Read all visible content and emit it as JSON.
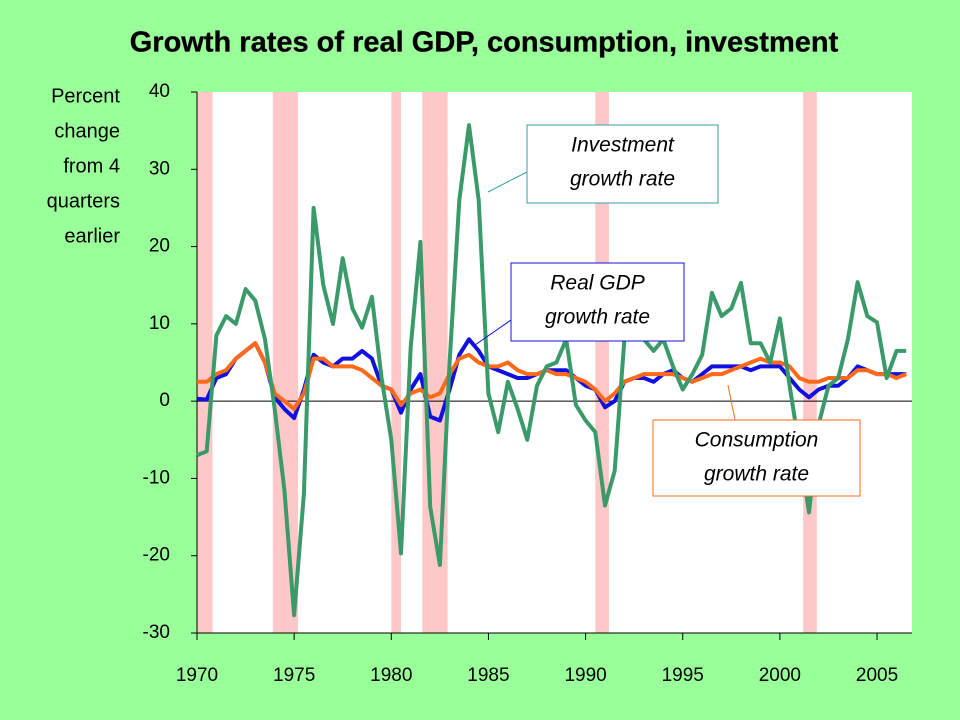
{
  "chart_data": {
    "type": "line",
    "title": "Growth rates of real GDP, consumption, investment",
    "y_label": [
      "Percent",
      "change",
      "from 4",
      "quarters",
      "earlier"
    ],
    "x": [
      1970,
      1970.5,
      1971,
      1971.5,
      1972,
      1972.5,
      1973,
      1973.5,
      1974,
      1974.5,
      1975,
      1975.5,
      1976,
      1976.5,
      1977,
      1977.5,
      1978,
      1978.5,
      1979,
      1979.5,
      1980,
      1980.5,
      1981,
      1981.5,
      1982,
      1982.5,
      1983,
      1983.5,
      1984,
      1984.5,
      1985,
      1985.5,
      1986,
      1986.5,
      1987,
      1987.5,
      1988,
      1988.5,
      1989,
      1989.5,
      1990,
      1990.5,
      1991,
      1991.5,
      1992,
      1992.5,
      1993,
      1993.5,
      1994,
      1994.5,
      1995,
      1995.5,
      1996,
      1996.5,
      1997,
      1997.5,
      1998,
      1998.5,
      1999,
      1999.5,
      2000,
      2000.5,
      2001,
      2001.5,
      2002,
      2002.5,
      2003,
      2003.5,
      2004,
      2004.5,
      2005,
      2005.5,
      2006,
      2006.5
    ],
    "series": [
      {
        "name": "Real GDP growth rate",
        "color": "#1010e0",
        "values": [
          0.3,
          0.2,
          3,
          3.5,
          5.5,
          6.5,
          7.5,
          5,
          0.5,
          -1,
          -2.2,
          1.5,
          6,
          5,
          4.5,
          5.5,
          5.5,
          6.5,
          5.5,
          2,
          1.5,
          -1.5,
          1.5,
          3.5,
          -2,
          -2.5,
          1.5,
          6,
          8,
          6.5,
          4.5,
          4,
          3.5,
          3,
          3,
          3.5,
          4,
          4,
          4,
          3,
          2,
          1.5,
          -0.8,
          0,
          2.5,
          3,
          3,
          2.5,
          3.5,
          4,
          3,
          2.5,
          3.5,
          4.5,
          4.5,
          4.5,
          4.5,
          4,
          4.5,
          4.5,
          4.5,
          3,
          1.5,
          0.5,
          1.5,
          2,
          2,
          3,
          4.5,
          4,
          3.5,
          3.5,
          3.5,
          3.5
        ]
      },
      {
        "name": "Consumption growth rate",
        "color": "#ff6a1a",
        "values": [
          2.5,
          2.5,
          3.5,
          4,
          5.5,
          6.5,
          7.5,
          5,
          1,
          0,
          -1,
          1,
          5.5,
          5.5,
          4.5,
          4.5,
          4.5,
          4,
          3,
          2,
          1.5,
          -0.5,
          1,
          1.5,
          0.5,
          1,
          3.5,
          5.5,
          6,
          5,
          4.5,
          4.5,
          5,
          4,
          3.5,
          3.5,
          4,
          3.5,
          3.5,
          3,
          2.5,
          1.5,
          0,
          1,
          2.5,
          3,
          3.5,
          3.5,
          3.5,
          3.5,
          3,
          2.5,
          3,
          3.5,
          3.5,
          4,
          4.5,
          5,
          5.5,
          5,
          5,
          4.5,
          3,
          2.5,
          2.5,
          3,
          3,
          3,
          4,
          4,
          3.5,
          3.5,
          3,
          3.5
        ]
      },
      {
        "name": "Investment growth rate",
        "color": "#3a9a6a",
        "values": [
          -7,
          -6.5,
          8.5,
          11,
          10,
          14.5,
          13,
          8,
          -1,
          -11.5,
          -27.7,
          -12,
          25,
          15,
          10,
          18.5,
          12,
          9.5,
          13.5,
          3,
          -5,
          -19.7,
          7,
          20.6,
          -13.7,
          -21.2,
          5,
          26,
          35.7,
          26,
          1,
          -4,
          2.5,
          -1,
          -5,
          2,
          4.5,
          5,
          8,
          -0.5,
          -2.5,
          -4,
          -13.5,
          -9,
          8,
          9,
          8,
          6.5,
          8,
          4.5,
          1.5,
          3.5,
          6,
          14,
          11,
          12,
          15.3,
          7.5,
          7.5,
          5,
          10.7,
          2,
          -6,
          -14.4,
          -3,
          2,
          3,
          8,
          15.4,
          11,
          10.2,
          3,
          6.5,
          6.5
        ]
      }
    ],
    "annotations": [
      {
        "text": [
          "Investment",
          "growth rate"
        ],
        "color": "#3aa0a0"
      },
      {
        "text": [
          "Real GDP",
          "growth rate"
        ],
        "color": "#1010e0"
      },
      {
        "text": [
          "Consumption",
          "growth rate"
        ],
        "color": "#ff6a1a"
      }
    ],
    "recessions": [
      [
        1970,
        1970.8
      ],
      [
        1973.9,
        1975.2
      ],
      [
        1980,
        1980.5
      ],
      [
        1981.6,
        1982.9
      ],
      [
        1990.5,
        1991.2
      ],
      [
        2001.2,
        2001.9
      ]
    ],
    "recession_color": "#ffc8c8",
    "xlim": [
      1970,
      2006.8
    ],
    "xticks": [
      1970,
      1975,
      1980,
      1985,
      1990,
      1995,
      2000,
      2005
    ],
    "ylim": [
      -30,
      40
    ],
    "yticks": [
      -30,
      -20,
      -10,
      0,
      10,
      20,
      30,
      40
    ]
  }
}
